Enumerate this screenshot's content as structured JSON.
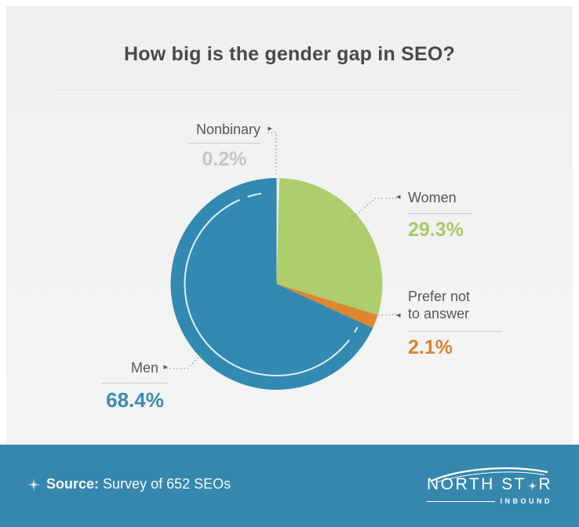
{
  "title": "How big is the gender gap in SEO?",
  "chart_data": {
    "type": "pie",
    "title": "How big is the gender gap in SEO?",
    "unit": "%",
    "direction": "clockwise",
    "start_angle_deg": 0,
    "categories": [
      "Nonbinary",
      "Women",
      "Prefer not to answer",
      "Men"
    ],
    "values": [
      0.2,
      29.3,
      2.1,
      68.4
    ],
    "slices": [
      {
        "label": "Nonbinary",
        "value": 0.2,
        "display": "0.2%",
        "color": "#e4ecdf",
        "pct_text_color": "#c5c8bc"
      },
      {
        "label": "Women",
        "value": 29.3,
        "display": "29.3%",
        "color": "#aecd6c",
        "pct_text_color": "#a9ca67"
      },
      {
        "label": "Prefer not to answer",
        "value": 2.1,
        "display": "2.1%",
        "color": "#de8530",
        "pct_text_color": "#dd7f2e"
      },
      {
        "label": "Men",
        "value": 68.4,
        "display": "68.4%",
        "color": "#3289b2",
        "pct_text_color": "#3a8cb2"
      }
    ],
    "legend_position": "callout-labels",
    "source": "Survey of 652 SEOs"
  },
  "callouts": {
    "nonbinary": {
      "label": "Nonbinary",
      "pct": "0.2%"
    },
    "women": {
      "label": "Women",
      "pct": "29.3%"
    },
    "prefer": {
      "line1": "Prefer not",
      "line2": "to answer",
      "pct": "2.1%"
    },
    "men": {
      "label": "Men",
      "pct": "68.4%"
    }
  },
  "icons": {
    "arrow_right": "▸",
    "arrow_left": "◂",
    "sparkle": "sparkle-star",
    "logo_star": "north-star"
  },
  "footer": {
    "source_label": "Source:",
    "source_text": "Survey of 652 SEOs",
    "bg_color": "#3687ad"
  },
  "logo": {
    "name_left": "NORTH ST",
    "name_right": "R",
    "subtext": "INBOUND"
  },
  "colors": {
    "title_text": "#4a4a4c",
    "label_text": "#57575a",
    "underline": "#c9c9c9",
    "leader_line": "#999999",
    "card_bg": "#f2f2f2",
    "footer_bg": "#3687ad"
  }
}
